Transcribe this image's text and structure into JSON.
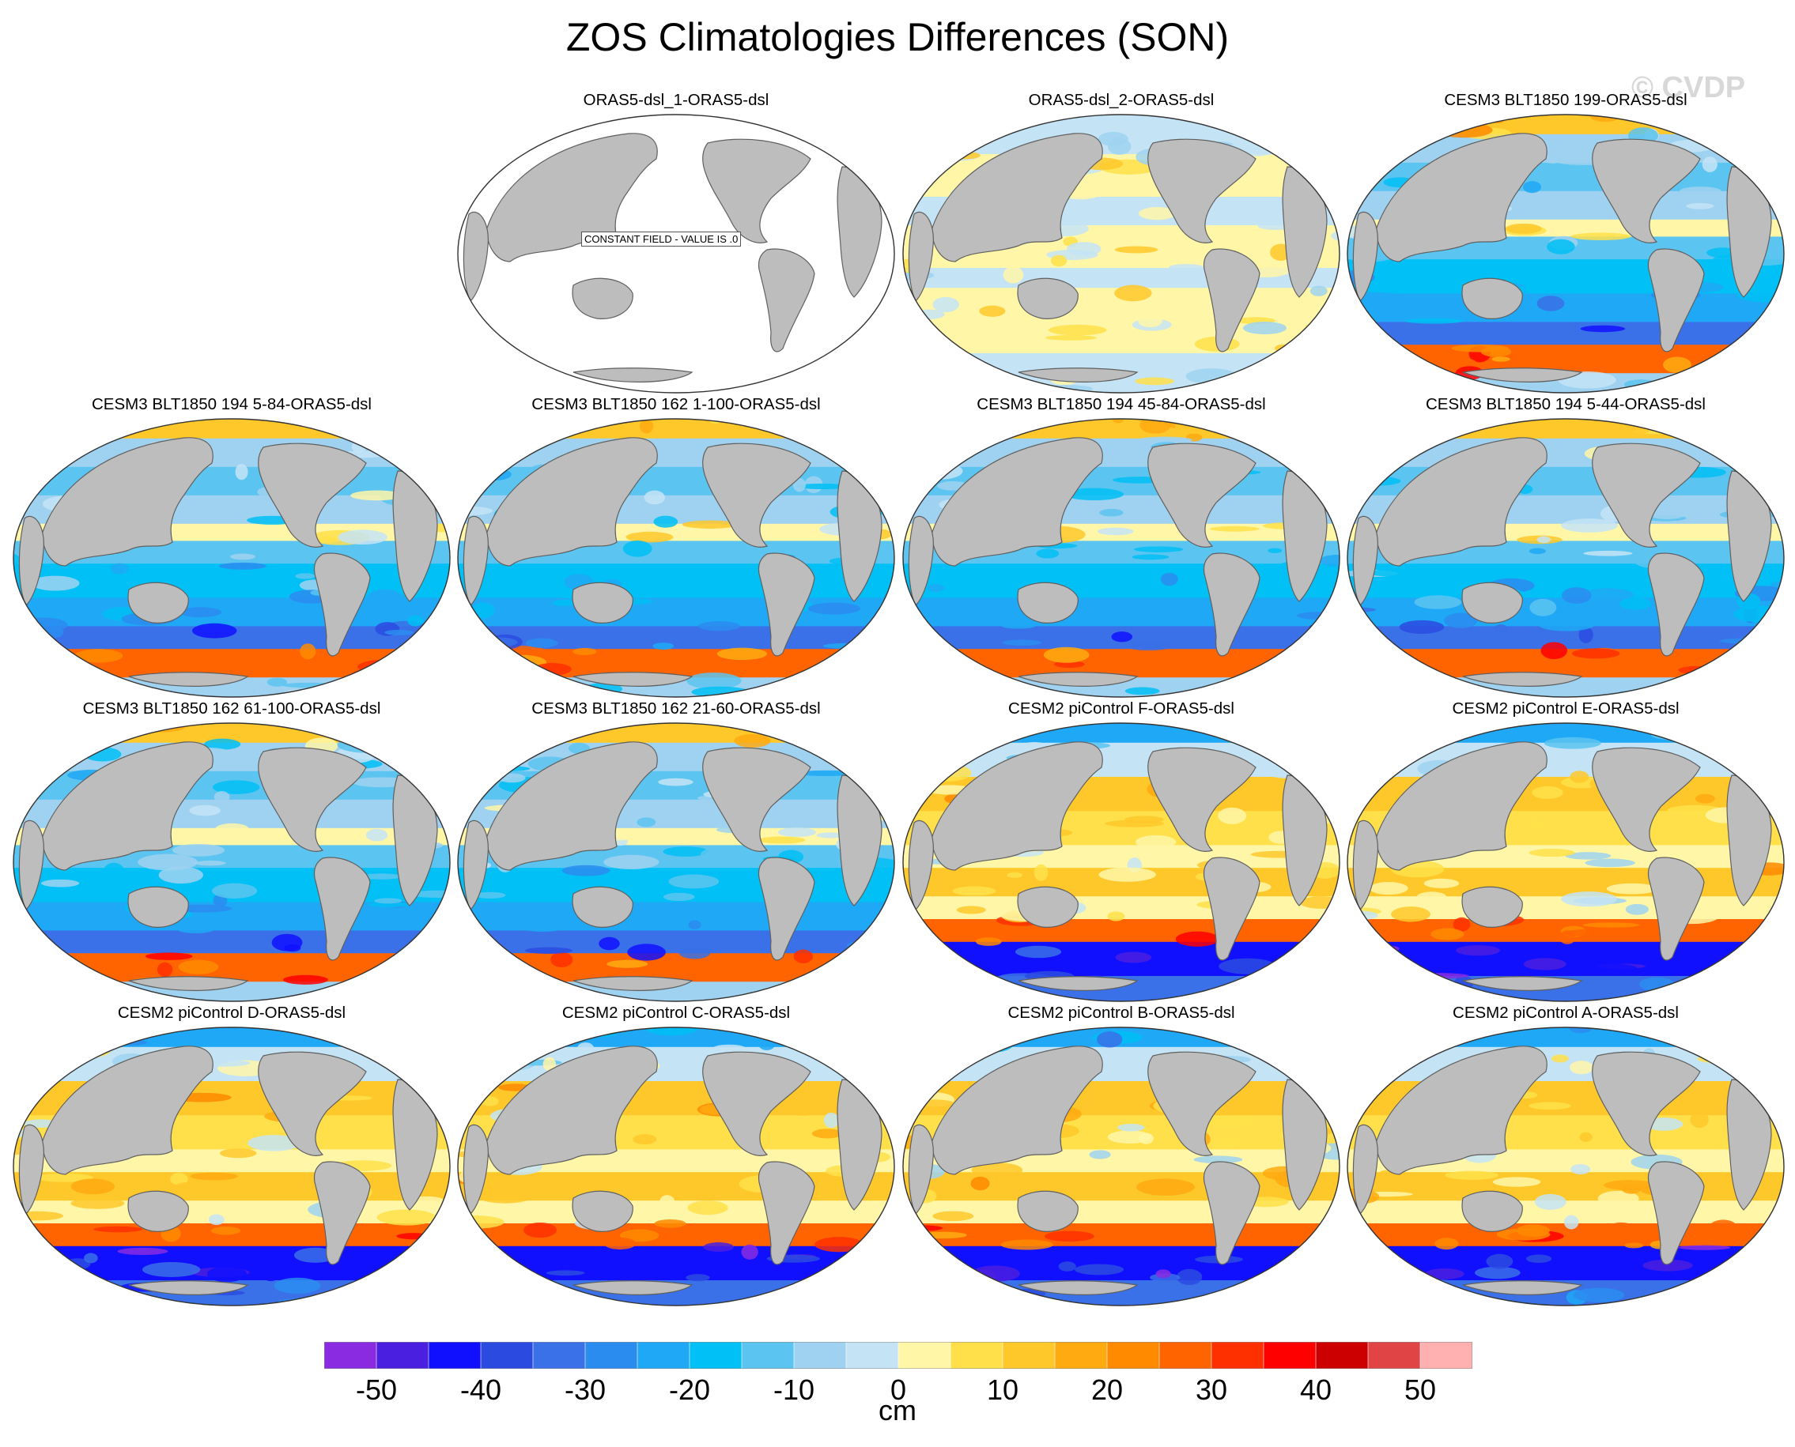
{
  "figure": {
    "title": "ZOS Climatologies Differences (SON)",
    "watermark": "© CVDP"
  },
  "panels": [
    {
      "title": "ORAS5-dsl_1-ORAS5-dsl",
      "pattern": "constant",
      "note": "CONSTANT FIELD - VALUE IS .0"
    },
    {
      "title": "ORAS5-dsl_2-ORAS5-dsl",
      "pattern": "near-zero"
    },
    {
      "title": "CESM3 BLT1850 199-ORAS5-dsl",
      "pattern": "cesm3"
    },
    {
      "title": "CESM3 BLT1850 194 5-84-ORAS5-dsl",
      "pattern": "cesm3"
    },
    {
      "title": "CESM3 BLT1850 162 1-100-ORAS5-dsl",
      "pattern": "cesm3"
    },
    {
      "title": "CESM3 BLT1850 194 45-84-ORAS5-dsl",
      "pattern": "cesm3"
    },
    {
      "title": "CESM3 BLT1850 194 5-44-ORAS5-dsl",
      "pattern": "cesm3"
    },
    {
      "title": "CESM3 BLT1850 162 61-100-ORAS5-dsl",
      "pattern": "cesm3"
    },
    {
      "title": "CESM3 BLT1850 162 21-60-ORAS5-dsl",
      "pattern": "cesm3"
    },
    {
      "title": "CESM2 piControl F-ORAS5-dsl",
      "pattern": "cesm2"
    },
    {
      "title": "CESM2 piControl E-ORAS5-dsl",
      "pattern": "cesm2"
    },
    {
      "title": "CESM2 piControl D-ORAS5-dsl",
      "pattern": "cesm2"
    },
    {
      "title": "CESM2 piControl C-ORAS5-dsl",
      "pattern": "cesm2"
    },
    {
      "title": "CESM2 piControl B-ORAS5-dsl",
      "pattern": "cesm2"
    },
    {
      "title": "CESM2 piControl A-ORAS5-dsl",
      "pattern": "cesm2"
    }
  ],
  "colorbar": {
    "units": "cm",
    "tick_labels": [
      "-50",
      "-40",
      "-30",
      "-20",
      "-10",
      "0",
      "10",
      "20",
      "30",
      "40",
      "50"
    ],
    "colors": [
      "#8a2be2",
      "#4b1fe0",
      "#1010ff",
      "#2b4be0",
      "#3a70e8",
      "#2b8cf0",
      "#1fa8f5",
      "#00c0f5",
      "#5cc4f0",
      "#9fd2f0",
      "#c4e4f6",
      "#fff6a8",
      "#ffe04a",
      "#ffc82a",
      "#ffaa10",
      "#ff8a00",
      "#ff6400",
      "#ff3000",
      "#ff0000",
      "#cc0000",
      "#e04444",
      "#ffb0b0"
    ]
  },
  "map_colors": {
    "land": "#bdbdbd",
    "coast": "#606060"
  }
}
